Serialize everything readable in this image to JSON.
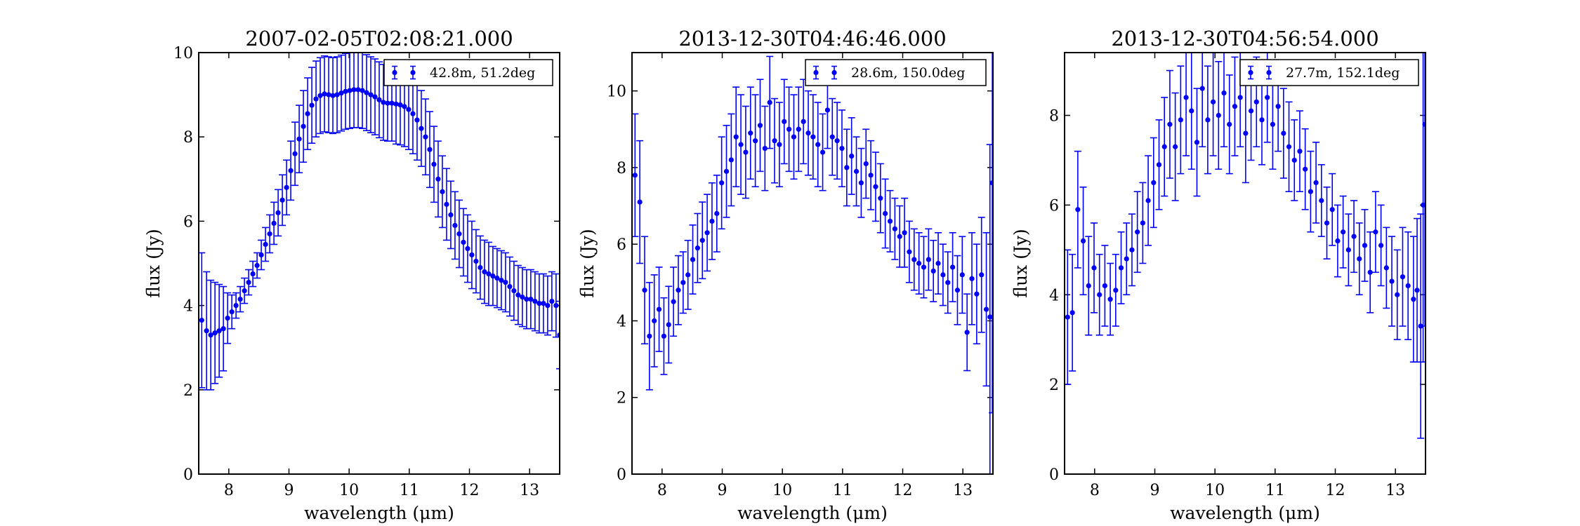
{
  "colors": {
    "series": "#0000ff",
    "axes": "#000000",
    "background": "#ffffff"
  },
  "chart_data": [
    {
      "type": "scatter",
      "error_bars": true,
      "title": "2007-02-05T02:08:21.000",
      "xlabel": "wavelength (μm)",
      "ylabel": "flux (Jy)",
      "xlim": [
        7.5,
        13.5
      ],
      "ylim": [
        0,
        10
      ],
      "xticks": [
        "8",
        "9",
        "10",
        "11",
        "12",
        "13"
      ],
      "yticks": [
        "0",
        "2",
        "4",
        "6",
        "8",
        "10"
      ],
      "legend": {
        "label": "42.8m, 51.2deg",
        "placement": "top-right"
      },
      "series": [
        {
          "name": "42.8m, 51.2deg",
          "x": [
            7.55,
            7.63,
            7.7,
            7.77,
            7.84,
            7.91,
            7.98,
            8.05,
            8.12,
            8.19,
            8.26,
            8.33,
            8.4,
            8.47,
            8.54,
            8.61,
            8.68,
            8.75,
            8.82,
            8.89,
            8.96,
            9.03,
            9.1,
            9.17,
            9.24,
            9.31,
            9.38,
            9.45,
            9.52,
            9.59,
            9.66,
            9.73,
            9.8,
            9.87,
            9.94,
            10.01,
            10.08,
            10.15,
            10.22,
            10.29,
            10.36,
            10.43,
            10.5,
            10.57,
            10.64,
            10.71,
            10.78,
            10.85,
            10.92,
            10.99,
            11.06,
            11.13,
            11.2,
            11.27,
            11.34,
            11.41,
            11.48,
            11.55,
            11.62,
            11.69,
            11.76,
            11.83,
            11.9,
            11.97,
            12.04,
            12.11,
            12.18,
            12.25,
            12.32,
            12.39,
            12.46,
            12.53,
            12.6,
            12.67,
            12.74,
            12.81,
            12.88,
            12.95,
            13.02,
            13.09,
            13.16,
            13.23,
            13.3,
            13.37,
            13.44,
            13.5
          ],
          "y": [
            3.65,
            3.4,
            3.3,
            3.35,
            3.4,
            3.45,
            3.7,
            3.85,
            4.0,
            4.15,
            4.35,
            4.55,
            4.75,
            4.95,
            5.2,
            5.45,
            5.7,
            5.95,
            6.2,
            6.5,
            6.8,
            7.2,
            7.6,
            7.95,
            8.25,
            8.55,
            8.75,
            8.9,
            8.98,
            9.02,
            9.0,
            8.98,
            9.0,
            9.04,
            9.08,
            9.1,
            9.12,
            9.12,
            9.1,
            9.05,
            9.0,
            8.95,
            8.88,
            8.82,
            8.8,
            8.8,
            8.78,
            8.76,
            8.72,
            8.65,
            8.55,
            8.4,
            8.2,
            8.0,
            7.7,
            7.35,
            7.0,
            6.7,
            6.4,
            6.15,
            5.9,
            5.7,
            5.5,
            5.35,
            5.2,
            5.05,
            4.9,
            4.8,
            4.75,
            4.7,
            4.65,
            4.6,
            4.55,
            4.45,
            4.35,
            4.25,
            4.2,
            4.15,
            4.15,
            4.1,
            4.05,
            4.05,
            4.0,
            4.1,
            4.0,
            3.3
          ],
          "yerr": [
            1.6,
            1.4,
            1.3,
            1.2,
            1.1,
            1.0,
            0.6,
            0.4,
            0.3,
            0.3,
            0.3,
            0.3,
            0.3,
            0.3,
            0.35,
            0.4,
            0.45,
            0.5,
            0.55,
            0.6,
            0.65,
            0.7,
            0.75,
            0.8,
            0.85,
            0.85,
            0.9,
            0.9,
            0.9,
            0.9,
            0.9,
            0.9,
            0.9,
            0.9,
            0.9,
            0.9,
            0.9,
            0.9,
            0.9,
            0.9,
            0.9,
            0.9,
            0.9,
            0.9,
            0.9,
            0.9,
            0.95,
            0.95,
            0.95,
            0.95,
            0.95,
            0.95,
            0.9,
            0.9,
            0.9,
            0.9,
            0.9,
            0.85,
            0.85,
            0.8,
            0.8,
            0.8,
            0.8,
            0.8,
            0.8,
            0.75,
            0.75,
            0.75,
            0.75,
            0.7,
            0.7,
            0.7,
            0.7,
            0.7,
            0.7,
            0.7,
            0.7,
            0.7,
            0.7,
            0.7,
            0.7,
            0.7,
            0.7,
            0.7,
            0.75,
            0.8
          ]
        }
      ]
    },
    {
      "type": "scatter",
      "error_bars": true,
      "title": "2013-12-30T04:46:46.000",
      "xlabel": "wavelength (μm)",
      "ylabel": "flux (Jy)",
      "xlim": [
        7.5,
        13.5
      ],
      "ylim": [
        0,
        11
      ],
      "xticks": [
        "8",
        "9",
        "10",
        "11",
        "12",
        "13"
      ],
      "yticks": [
        "0",
        "2",
        "4",
        "6",
        "8",
        "10"
      ],
      "legend": {
        "label": "28.6m, 150.0deg",
        "placement": "top-right"
      },
      "series": [
        {
          "name": "28.6m, 150.0deg",
          "x": [
            7.55,
            7.63,
            7.71,
            7.79,
            7.87,
            7.95,
            8.03,
            8.11,
            8.19,
            8.27,
            8.35,
            8.43,
            8.51,
            8.59,
            8.67,
            8.75,
            8.83,
            8.91,
            8.99,
            9.07,
            9.15,
            9.23,
            9.31,
            9.39,
            9.47,
            9.55,
            9.63,
            9.71,
            9.79,
            9.87,
            9.95,
            10.03,
            10.11,
            10.19,
            10.27,
            10.35,
            10.43,
            10.51,
            10.59,
            10.67,
            10.75,
            10.83,
            10.91,
            10.99,
            11.07,
            11.15,
            11.23,
            11.31,
            11.39,
            11.47,
            11.55,
            11.63,
            11.71,
            11.79,
            11.87,
            11.95,
            12.03,
            12.11,
            12.19,
            12.27,
            12.35,
            12.43,
            12.51,
            12.59,
            12.67,
            12.75,
            12.83,
            12.91,
            12.99,
            13.07,
            13.15,
            13.23,
            13.31,
            13.39,
            13.45,
            13.49
          ],
          "y": [
            7.8,
            7.1,
            4.8,
            3.6,
            4.0,
            4.3,
            3.6,
            3.9,
            4.5,
            4.8,
            5.0,
            5.2,
            5.6,
            5.9,
            6.1,
            6.3,
            6.6,
            6.8,
            7.6,
            7.9,
            8.2,
            8.8,
            8.6,
            8.4,
            8.9,
            8.7,
            9.1,
            8.5,
            9.7,
            8.7,
            8.6,
            9.2,
            9.0,
            8.8,
            9.0,
            9.2,
            8.9,
            8.8,
            8.6,
            8.4,
            9.5,
            8.8,
            8.7,
            8.5,
            8.0,
            8.3,
            7.9,
            7.6,
            8.1,
            7.8,
            7.5,
            7.2,
            6.8,
            6.6,
            6.4,
            6.2,
            6.3,
            5.8,
            5.6,
            5.5,
            5.4,
            5.6,
            5.3,
            5.5,
            5.2,
            5.0,
            5.4,
            4.8,
            5.2,
            3.7,
            5.1,
            4.7,
            5.2,
            4.3,
            4.1,
            7.6
          ],
          "yerr": [
            1.6,
            1.6,
            1.4,
            1.4,
            1.2,
            1.1,
            1.0,
            1.0,
            0.9,
            0.9,
            0.8,
            0.9,
            0.9,
            0.9,
            1.0,
            1.0,
            1.0,
            1.0,
            1.2,
            1.2,
            1.2,
            1.3,
            1.3,
            1.2,
            1.2,
            1.2,
            1.2,
            1.1,
            1.2,
            1.1,
            1.1,
            1.1,
            1.1,
            1.1,
            1.1,
            1.1,
            1.1,
            1.1,
            1.1,
            1.0,
            1.0,
            1.0,
            1.0,
            1.0,
            1.0,
            1.0,
            0.9,
            0.9,
            0.9,
            0.9,
            0.9,
            0.9,
            0.9,
            0.8,
            0.8,
            0.8,
            0.9,
            0.8,
            0.8,
            0.8,
            0.8,
            0.8,
            0.8,
            0.8,
            0.8,
            0.8,
            0.9,
            0.9,
            1.0,
            1.0,
            1.2,
            1.3,
            1.5,
            2.0,
            4.5,
            6.0
          ]
        }
      ]
    },
    {
      "type": "scatter",
      "error_bars": true,
      "title": "2013-12-30T04:56:54.000",
      "xlabel": "wavelength (μm)",
      "ylabel": "flux (Jy)",
      "xlim": [
        7.5,
        13.5
      ],
      "ylim": [
        0,
        9.4
      ],
      "xticks": [
        "8",
        "9",
        "10",
        "11",
        "12",
        "13"
      ],
      "yticks": [
        "0",
        "2",
        "4",
        "6",
        "8"
      ],
      "legend": {
        "label": "27.7m, 152.1deg",
        "placement": "top-right"
      },
      "series": [
        {
          "name": "27.7m, 152.1deg",
          "x": [
            7.55,
            7.63,
            7.72,
            7.81,
            7.9,
            7.99,
            8.08,
            8.17,
            8.26,
            8.35,
            8.44,
            8.53,
            8.62,
            8.71,
            8.8,
            8.89,
            8.98,
            9.07,
            9.16,
            9.25,
            9.34,
            9.43,
            9.52,
            9.61,
            9.7,
            9.79,
            9.88,
            9.97,
            10.06,
            10.15,
            10.24,
            10.33,
            10.42,
            10.51,
            10.6,
            10.69,
            10.78,
            10.87,
            10.96,
            11.05,
            11.14,
            11.23,
            11.32,
            11.41,
            11.5,
            11.59,
            11.68,
            11.77,
            11.86,
            11.95,
            12.04,
            12.13,
            12.22,
            12.31,
            12.4,
            12.49,
            12.58,
            12.67,
            12.76,
            12.85,
            12.94,
            13.03,
            13.12,
            13.21,
            13.3,
            13.36,
            13.42,
            13.46,
            13.49
          ],
          "y": [
            3.5,
            3.6,
            5.9,
            5.2,
            4.2,
            4.6,
            4.0,
            4.2,
            3.9,
            4.1,
            4.6,
            4.8,
            5.0,
            5.4,
            5.6,
            6.1,
            6.5,
            6.9,
            7.3,
            7.8,
            7.3,
            7.9,
            8.4,
            8.1,
            7.4,
            8.6,
            7.9,
            8.3,
            8.0,
            8.5,
            7.8,
            8.2,
            8.4,
            7.6,
            8.1,
            8.3,
            7.9,
            8.4,
            7.8,
            8.2,
            7.6,
            7.3,
            7.0,
            7.2,
            6.8,
            6.3,
            6.5,
            6.1,
            5.6,
            5.9,
            5.2,
            5.4,
            5.0,
            5.3,
            4.8,
            5.1,
            4.5,
            5.4,
            5.1,
            4.6,
            4.3,
            4.0,
            4.4,
            4.2,
            3.9,
            4.1,
            3.3,
            6.0,
            7.8
          ],
          "yerr": [
            1.5,
            1.3,
            1.3,
            1.2,
            1.1,
            1.0,
            0.9,
            0.9,
            0.8,
            0.8,
            0.8,
            0.8,
            0.8,
            0.9,
            0.9,
            1.0,
            1.0,
            1.0,
            1.1,
            1.2,
            1.2,
            1.2,
            1.3,
            1.3,
            1.2,
            1.3,
            1.2,
            1.2,
            1.2,
            1.2,
            1.1,
            1.1,
            1.1,
            1.1,
            1.1,
            1.0,
            1.0,
            1.0,
            1.0,
            1.0,
            1.0,
            1.0,
            0.9,
            0.9,
            0.9,
            0.9,
            0.9,
            0.8,
            0.8,
            0.8,
            0.8,
            0.8,
            0.8,
            0.8,
            0.8,
            0.8,
            0.9,
            0.9,
            0.9,
            0.9,
            1.0,
            1.0,
            1.1,
            1.2,
            1.4,
            1.6,
            2.5,
            3.5,
            4.5
          ]
        }
      ]
    }
  ]
}
